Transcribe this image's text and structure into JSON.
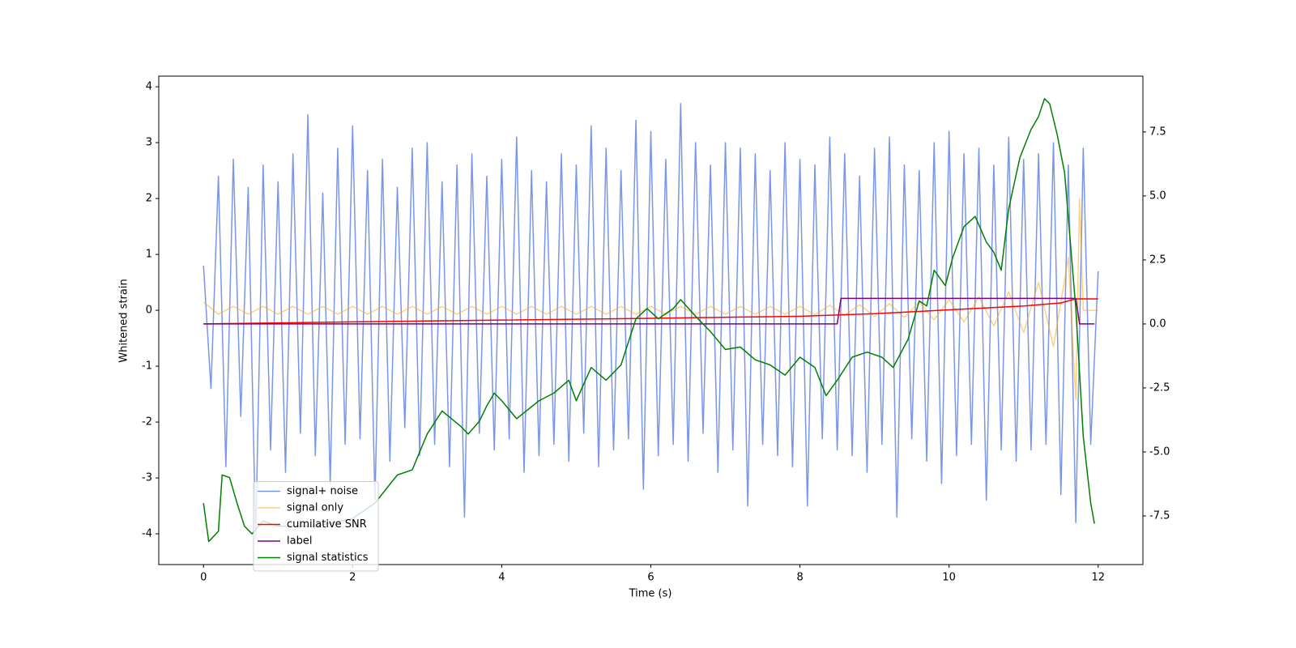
{
  "chart_data": {
    "type": "line",
    "xlabel": "Time (s)",
    "ylabel": "Whitened strain",
    "xlim": [
      -0.6,
      12.6
    ],
    "xticks": [
      0,
      2,
      4,
      6,
      8,
      10,
      12
    ],
    "ylim": [
      -4.55,
      4.19
    ],
    "yticks": [
      -4,
      -3,
      -2,
      -1,
      0,
      1,
      2,
      3,
      4
    ],
    "y2lim": [
      -9.4,
      9.68
    ],
    "y2ticks": [
      {
        "value": -7.5,
        "label": "-7.5"
      },
      {
        "value": -5,
        "label": "-5.0"
      },
      -2.5,
      {
        "value": 0,
        "label": "0.0"
      },
      2.5,
      {
        "value": 5,
        "label": "5.0"
      },
      7.5
    ],
    "grid": false,
    "legend": "lower left",
    "series": [
      {
        "name": "signal+ noise",
        "color": "royalblue",
        "opacity": 0.7,
        "x": [
          0,
          0.1,
          0.2,
          0.3,
          0.4,
          0.5,
          0.6,
          0.7,
          0.8,
          0.9,
          1,
          1.1,
          1.2,
          1.3,
          1.4,
          1.5,
          1.6,
          1.7,
          1.8,
          1.9,
          2,
          2.1,
          2.2,
          2.3,
          2.4,
          2.5,
          2.6,
          2.7,
          2.8,
          2.9,
          3,
          3.1,
          3.2,
          3.3,
          3.4,
          3.5,
          3.6,
          3.7,
          3.8,
          3.9,
          4,
          4.1,
          4.2,
          4.3,
          4.4,
          4.5,
          4.6,
          4.7,
          4.8,
          4.9,
          5,
          5.1,
          5.2,
          5.3,
          5.4,
          5.5,
          5.6,
          5.7,
          5.8,
          5.9,
          6,
          6.1,
          6.2,
          6.3,
          6.4,
          6.5,
          6.6,
          6.7,
          6.8,
          6.9,
          7,
          7.1,
          7.2,
          7.3,
          7.4,
          7.5,
          7.6,
          7.7,
          7.8,
          7.9,
          8,
          8.1,
          8.2,
          8.3,
          8.4,
          8.5,
          8.6,
          8.7,
          8.8,
          8.9,
          9,
          9.1,
          9.2,
          9.3,
          9.4,
          9.5,
          9.6,
          9.7,
          9.8,
          9.9,
          10,
          10.1,
          10.2,
          10.3,
          10.4,
          10.5,
          10.6,
          10.7,
          10.8,
          10.9,
          11,
          11.1,
          11.2,
          11.3,
          11.4,
          11.5,
          11.6,
          11.7,
          11.8,
          11.9,
          12
        ],
        "values": [
          0.8,
          -1.4,
          2.4,
          -2.8,
          2.7,
          -1.9,
          2.2,
          -4.1,
          2.6,
          -2.5,
          2.3,
          -2.9,
          2.8,
          -2.2,
          3.5,
          -2.6,
          2.1,
          -3.1,
          2.9,
          -2.4,
          3.3,
          -2.3,
          2.5,
          -3.4,
          2.7,
          -2.7,
          2.2,
          -2.1,
          2.9,
          -2.6,
          3.0,
          -2.4,
          2.3,
          -2.8,
          2.6,
          -3.7,
          2.8,
          -2.2,
          2.4,
          -2.5,
          2.7,
          -2.3,
          3.1,
          -2.9,
          2.5,
          -2.6,
          2.3,
          -2.4,
          2.8,
          -2.7,
          2.6,
          -2.2,
          3.3,
          -2.8,
          2.9,
          -2.5,
          2.5,
          -2.3,
          3.4,
          -3.2,
          3.2,
          -2.6,
          2.7,
          -2.4,
          3.7,
          -2.7,
          3.0,
          -2.2,
          2.6,
          -2.9,
          3.0,
          -2.5,
          2.9,
          -3.5,
          2.8,
          -2.4,
          2.5,
          -2.6,
          3.0,
          -2.8,
          2.7,
          -3.5,
          2.6,
          -2.3,
          3.1,
          -2.5,
          2.8,
          -2.6,
          2.4,
          -2.9,
          2.9,
          -2.4,
          3.1,
          -3.7,
          2.6,
          -2.3,
          2.5,
          -2.7,
          3.0,
          -3.1,
          3.2,
          -2.6,
          2.8,
          -2.4,
          2.9,
          -3.4,
          2.6,
          -2.5,
          3.1,
          -2.7,
          2.7,
          -2.5,
          2.8,
          -2.4,
          3.0,
          -3.3,
          2.6,
          -3.8,
          2.9,
          -2.4,
          0.7
        ]
      },
      {
        "name": "signal only",
        "color": "orange",
        "opacity": 0.5,
        "x": [
          0,
          0.2,
          0.4,
          0.6,
          0.8,
          1,
          1.2,
          1.4,
          1.6,
          1.8,
          2,
          2.2,
          2.4,
          2.6,
          2.8,
          3,
          3.2,
          3.4,
          3.6,
          3.8,
          4,
          4.2,
          4.4,
          4.6,
          4.8,
          5,
          5.2,
          5.4,
          5.6,
          5.8,
          6,
          6.2,
          6.4,
          6.6,
          6.8,
          7,
          7.2,
          7.4,
          7.6,
          7.8,
          8,
          8.2,
          8.4,
          8.6,
          8.8,
          9,
          9.2,
          9.4,
          9.6,
          9.8,
          10,
          10.2,
          10.4,
          10.6,
          10.8,
          11,
          11.2,
          11.4,
          11.6,
          11.7,
          11.75,
          11.8,
          12
        ],
        "values": [
          0.15,
          -0.07,
          0.07,
          -0.07,
          0.07,
          -0.07,
          0.07,
          -0.07,
          0.07,
          -0.07,
          0.07,
          -0.07,
          0.07,
          -0.07,
          0.07,
          -0.07,
          0.07,
          -0.07,
          0.07,
          -0.07,
          0.07,
          -0.07,
          0.07,
          -0.07,
          0.07,
          -0.07,
          0.07,
          -0.07,
          0.07,
          -0.07,
          0.07,
          -0.07,
          0.07,
          -0.07,
          0.07,
          -0.07,
          0.07,
          -0.07,
          0.07,
          -0.07,
          0.07,
          -0.08,
          0.09,
          -0.09,
          0.1,
          -0.11,
          0.12,
          -0.13,
          0.15,
          -0.17,
          0.19,
          -0.21,
          0.24,
          -0.28,
          0.33,
          -0.4,
          0.5,
          -0.65,
          0.95,
          -1.6,
          2.0,
          0,
          0
        ]
      },
      {
        "name": "cumilative SNR",
        "color": "red",
        "axis": "y2",
        "x": [
          0,
          2,
          4,
          6,
          8,
          9,
          10,
          11,
          11.5,
          11.7,
          12
        ],
        "values": [
          0,
          0.08,
          0.15,
          0.22,
          0.3,
          0.4,
          0.55,
          0.7,
          0.82,
          0.98,
          0.98
        ]
      },
      {
        "name": "label",
        "color": "purple",
        "axis": "y2",
        "x": [
          0,
          8.5,
          8.55,
          11.7,
          11.75,
          11.95
        ],
        "values": [
          0,
          0,
          1,
          1,
          0,
          0
        ]
      },
      {
        "name": "signal statistics",
        "color": "green",
        "axis": "y2",
        "x": [
          0,
          0.07,
          0.2,
          0.25,
          0.35,
          0.45,
          0.55,
          0.65,
          0.8,
          1,
          1.5,
          2,
          2.3,
          2.6,
          2.8,
          3,
          3.2,
          3.45,
          3.55,
          3.7,
          3.8,
          3.9,
          4,
          4.2,
          4.5,
          4.7,
          4.9,
          5,
          5.2,
          5.4,
          5.6,
          5.8,
          5.95,
          6.1,
          6.3,
          6.4,
          6.6,
          6.8,
          7,
          7.2,
          7.4,
          7.6,
          7.8,
          8,
          8.2,
          8.35,
          8.5,
          8.7,
          8.9,
          9.1,
          9.25,
          9.45,
          9.6,
          9.7,
          9.8,
          9.95,
          10.05,
          10.2,
          10.35,
          10.5,
          10.6,
          10.7,
          10.8,
          10.95,
          11.1,
          11.2,
          11.28,
          11.35,
          11.45,
          11.55,
          11.7,
          11.8,
          11.9,
          11.95
        ],
        "values": [
          -7.0,
          -8.5,
          -8.1,
          -5.9,
          -6.0,
          -7.0,
          -7.9,
          -8.2,
          -7.7,
          -7.9,
          -7.9,
          -7.6,
          -7.0,
          -5.9,
          -5.7,
          -4.3,
          -3.4,
          -4.0,
          -4.3,
          -3.8,
          -3.2,
          -2.7,
          -3.0,
          -3.7,
          -3.0,
          -2.7,
          -2.2,
          -3.0,
          -1.7,
          -2.2,
          -1.6,
          0.2,
          0.6,
          0.2,
          0.6,
          0.95,
          0.3,
          -0.3,
          -1.0,
          -0.9,
          -1.4,
          -1.6,
          -2.0,
          -1.3,
          -1.7,
          -2.8,
          -2.2,
          -1.3,
          -1.1,
          -1.3,
          -1.7,
          -0.6,
          0.9,
          0.7,
          2.1,
          1.5,
          2.6,
          3.8,
          4.2,
          3.2,
          2.8,
          2.1,
          4.5,
          6.5,
          7.6,
          8.1,
          8.8,
          8.6,
          7.4,
          5.9,
          0.6,
          -4.4,
          -7.0,
          -7.8
        ]
      }
    ]
  }
}
